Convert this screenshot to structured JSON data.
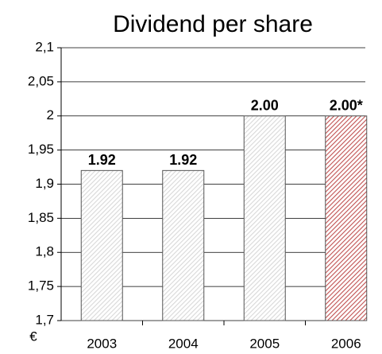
{
  "chart_data": {
    "type": "bar",
    "title": "Dividend per share",
    "y_label": "€",
    "categories": [
      "2003",
      "2004",
      "2005",
      "2006"
    ],
    "values": [
      1.92,
      1.92,
      2.0,
      2.0
    ],
    "value_labels": [
      "1.92",
      "1.92",
      "2.00",
      "2.00*"
    ],
    "colors": [
      "#d8d8d8",
      "#d8d8d8",
      "#d8d8d8",
      "#c05050"
    ],
    "ylim": [
      1.7,
      2.1
    ],
    "yticks": [
      {
        "value": 1.7,
        "label": "1,7"
      },
      {
        "value": 1.75,
        "label": "1,75"
      },
      {
        "value": 1.8,
        "label": "1,8"
      },
      {
        "value": 1.85,
        "label": "1,85"
      },
      {
        "value": 1.9,
        "label": "1,9"
      },
      {
        "value": 1.95,
        "label": "1,95"
      },
      2,
      {
        "value": 2.05,
        "label": "2,05"
      },
      {
        "value": 2.1,
        "label": "2,1"
      }
    ],
    "grid": true
  }
}
